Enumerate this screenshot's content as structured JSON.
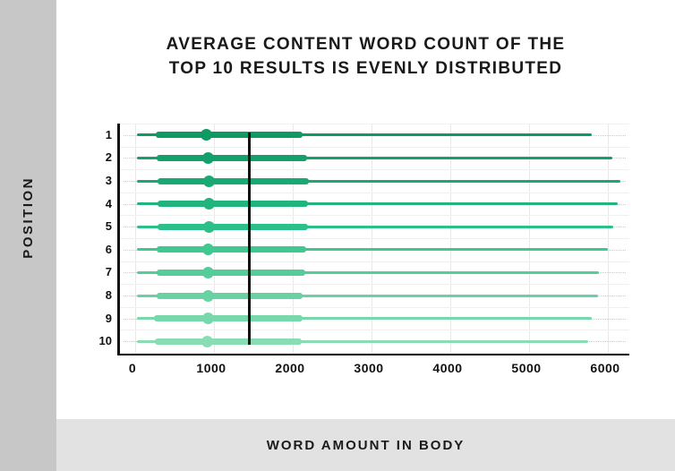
{
  "page": {
    "title_line1": "AVERAGE CONTENT WORD COUNT OF THE",
    "title_line2": "TOP 10 RESULTS IS EVENLY DISTRIBUTED",
    "y_axis_label": "POSITION",
    "x_axis_label": "WORD AMOUNT IN BODY"
  },
  "colors": {
    "sidebar_bg": "#c7c7c7",
    "bottom_band_bg": "#e2e2e2",
    "text": "#191919",
    "axis_spine": "#111111",
    "vertical_gridline": "#e9e9e9",
    "horizontal_gridline": "#f0f0f0",
    "row_dotted_guide": "#cccccc",
    "average_line": "#111111"
  },
  "chart_data": {
    "type": "box-range-horizontal",
    "title": "AVERAGE CONTENT WORD COUNT OF THE TOP 10 RESULTS IS EVENLY DISTRIBUTED",
    "xlabel": "WORD AMOUNT IN BODY",
    "ylabel": "POSITION",
    "x_ticks": [
      0,
      1000,
      2000,
      3000,
      4000,
      5000,
      6000
    ],
    "xlim": [
      0,
      6270
    ],
    "grid": "on",
    "average_line_x": 1450,
    "rows": [
      {
        "position": "1",
        "min": 20,
        "q1": 260,
        "mean": 900,
        "q3": 2130,
        "max": 5800,
        "color": "#0f9a63"
      },
      {
        "position": "2",
        "min": 20,
        "q1": 275,
        "mean": 930,
        "q3": 2180,
        "max": 6060,
        "color": "#14a06b"
      },
      {
        "position": "3",
        "min": 20,
        "q1": 280,
        "mean": 935,
        "q3": 2210,
        "max": 6160,
        "color": "#19aa73"
      },
      {
        "position": "4",
        "min": 20,
        "q1": 280,
        "mean": 935,
        "q3": 2190,
        "max": 6120,
        "color": "#22b47d"
      },
      {
        "position": "5",
        "min": 20,
        "q1": 280,
        "mean": 935,
        "q3": 2190,
        "max": 6070,
        "color": "#2cbf87"
      },
      {
        "position": "6",
        "min": 20,
        "q1": 275,
        "mean": 930,
        "q3": 2170,
        "max": 6000,
        "color": "#41c891"
      },
      {
        "position": "7",
        "min": 20,
        "q1": 270,
        "mean": 930,
        "q3": 2160,
        "max": 5890,
        "color": "#55cd9b"
      },
      {
        "position": "8",
        "min": 20,
        "q1": 275,
        "mean": 925,
        "q3": 2130,
        "max": 5880,
        "color": "#68d2a4"
      },
      {
        "position": "9",
        "min": 20,
        "q1": 235,
        "mean": 925,
        "q3": 2125,
        "max": 5800,
        "color": "#79d7ac"
      },
      {
        "position": "10",
        "min": 20,
        "q1": 250,
        "mean": 920,
        "q3": 2115,
        "max": 5750,
        "color": "#8adcb4"
      }
    ]
  }
}
